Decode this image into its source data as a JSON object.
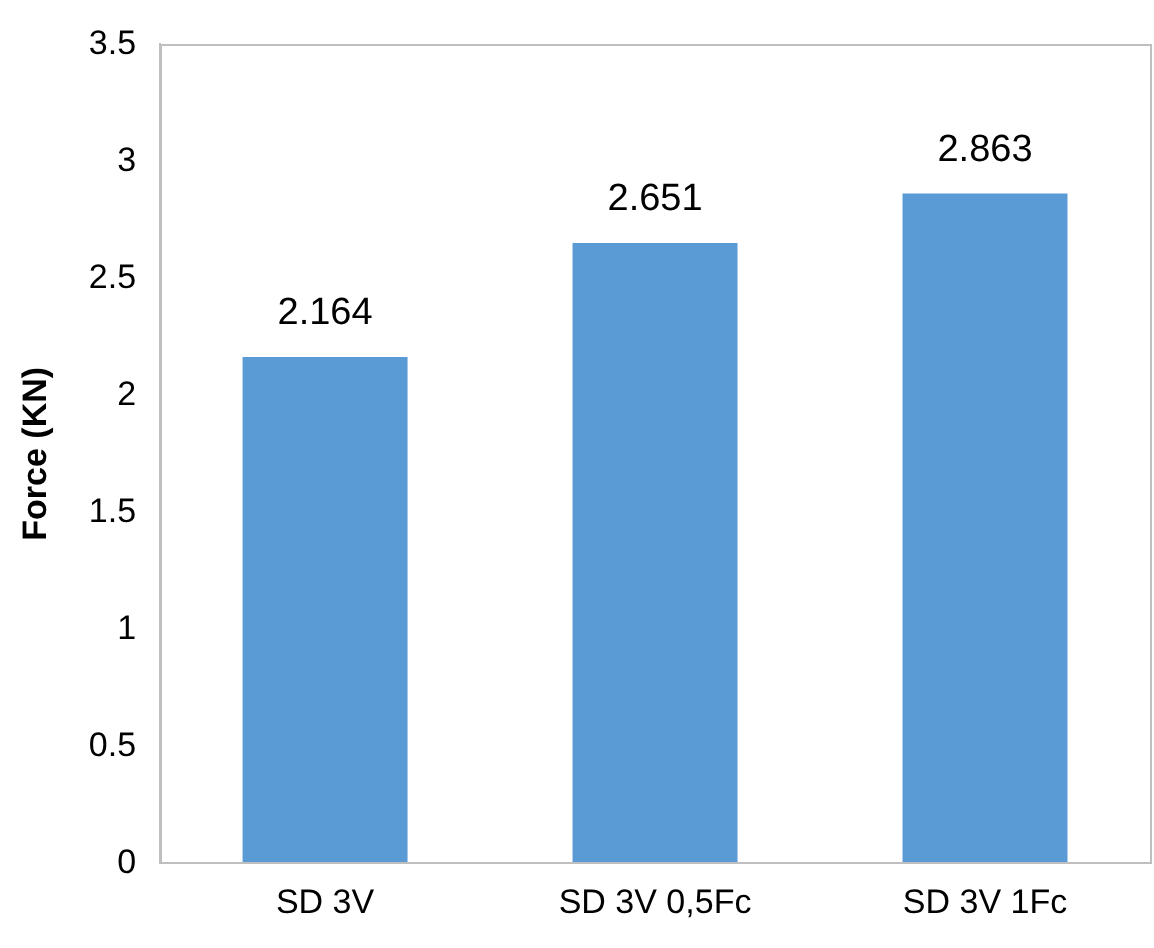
{
  "chart_data": {
    "type": "bar",
    "ylabel": "Force (KN)",
    "categories": [
      "SD 3V",
      "SD 3V 0,5Fc",
      "SD 3V 1Fc"
    ],
    "values": [
      2.164,
      2.651,
      2.863
    ],
    "color": "#5b9bd5",
    "ylim": [
      0,
      3.5
    ],
    "yticks": [
      0,
      0.5,
      1,
      1.5,
      2,
      2.5,
      3,
      3.5
    ],
    "grid": false,
    "legend": false,
    "data_labels": true
  }
}
